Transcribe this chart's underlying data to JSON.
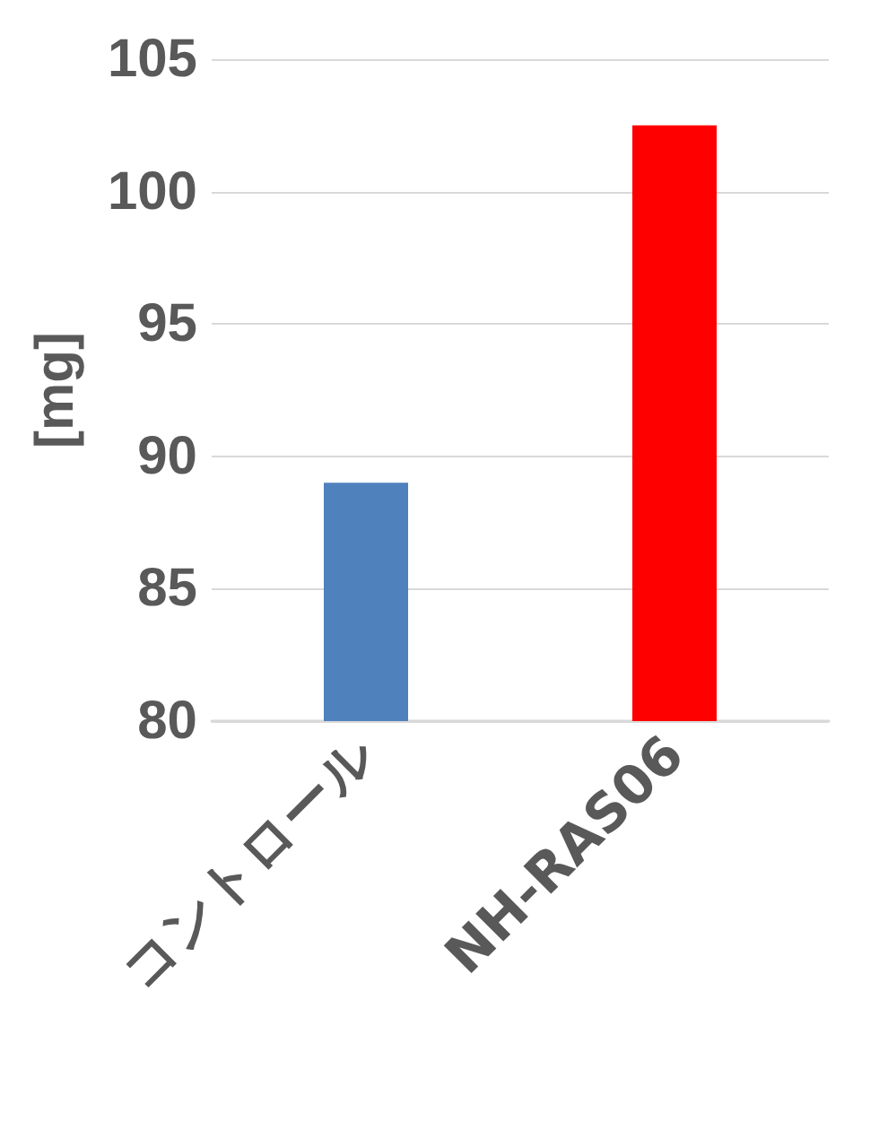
{
  "chart_data": {
    "type": "bar",
    "categories": [
      "コントロール",
      "NH-RAS06"
    ],
    "values": [
      89.0,
      102.5
    ],
    "colors": [
      "#4f81bd",
      "#ff0000"
    ],
    "ylabel": "[mg]",
    "ylim": [
      80,
      105
    ],
    "yticks": [
      80,
      85,
      90,
      95,
      100,
      105
    ],
    "grid": "y"
  }
}
